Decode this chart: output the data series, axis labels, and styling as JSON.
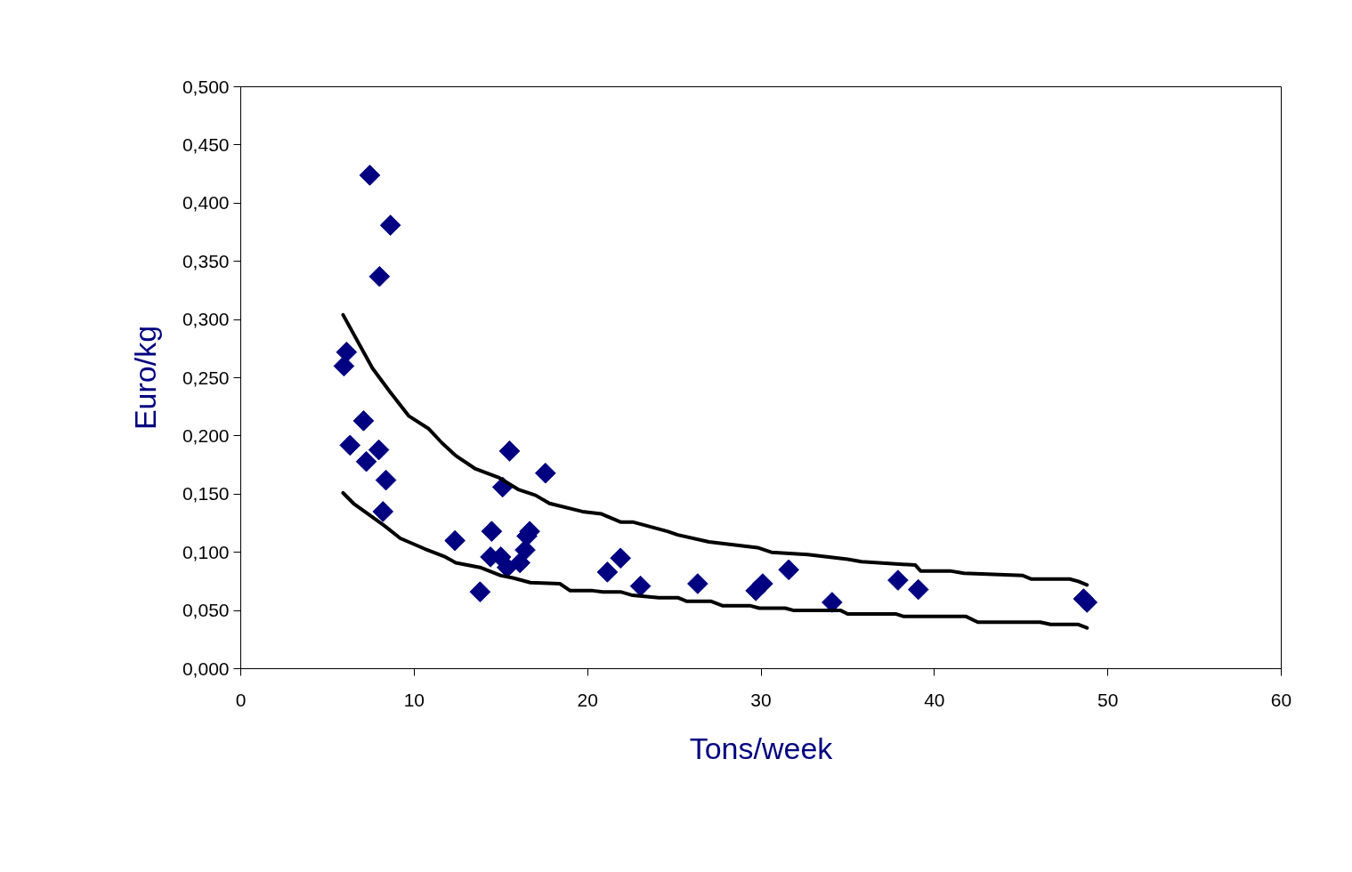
{
  "chart_data": {
    "type": "scatter",
    "xlabel": "Tons/week",
    "ylabel": "Euro/kg",
    "xlim": [
      0,
      60
    ],
    "ylim": [
      0,
      0.5
    ],
    "xticks": [
      0,
      10,
      20,
      30,
      40,
      50,
      60
    ],
    "yticks": [
      {
        "value": 0,
        "label": "0,000"
      },
      {
        "value": 0.05,
        "label": "0,050"
      },
      {
        "value": 0.1,
        "label": "0,100"
      },
      {
        "value": 0.15,
        "label": "0,150"
      },
      {
        "value": 0.2,
        "label": "0,200"
      },
      {
        "value": 0.25,
        "label": "0,250"
      },
      {
        "value": 0.3,
        "label": "0,300"
      },
      {
        "value": 0.35,
        "label": "0,350"
      },
      {
        "value": 0.4,
        "label": "0,400"
      },
      {
        "value": 0.45,
        "label": "0,450"
      },
      {
        "value": 0.5,
        "label": "0,500"
      }
    ],
    "grid": false,
    "line_style": "solid",
    "series": [
      {
        "marker": "diamond",
        "color": "#000080",
        "x": [
          7.44,
          8.63,
          8.0,
          6.1,
          5.95,
          7.08,
          6.3,
          7.24,
          7.96,
          8.37,
          8.2,
          12.35,
          14.47,
          14.4,
          15.0,
          15.36,
          16.1,
          16.5,
          16.66,
          16.4,
          13.8,
          15.1,
          15.5,
          17.57,
          21.14,
          21.9,
          23.05,
          26.35,
          29.7,
          30.1,
          31.6,
          34.1,
          37.9,
          39.07,
          48.6,
          48.8
        ],
        "values": [
          0.424,
          0.381,
          0.337,
          0.272,
          0.26,
          0.213,
          0.192,
          0.178,
          0.188,
          0.162,
          0.135,
          0.11,
          0.118,
          0.096,
          0.096,
          0.087,
          0.091,
          0.114,
          0.118,
          0.102,
          0.066,
          0.156,
          0.187,
          0.168,
          0.083,
          0.095,
          0.071,
          0.073,
          0.067,
          0.073,
          0.085,
          0.057,
          0.076,
          0.068,
          0.06,
          0.057
        ]
      },
      {
        "type": "line",
        "marker": "none",
        "color": "#000000",
        "x": [
          5.9,
          7.6,
          8.6,
          9.7,
          10.85,
          11.6,
          12.4,
          13.5,
          14.9,
          16.0,
          17.0,
          17.8,
          19.7,
          20.8,
          21.9,
          22.6,
          24.6,
          25.2,
          27.0,
          29.8,
          30.6,
          32.7,
          35.0,
          35.8,
          38.9,
          39.2,
          40.9,
          41.7,
          45.1,
          45.6,
          47.8,
          48.3,
          48.8
        ],
        "values": [
          0.304,
          0.258,
          0.238,
          0.217,
          0.206,
          0.194,
          0.183,
          0.172,
          0.164,
          0.154,
          0.149,
          0.142,
          0.135,
          0.133,
          0.126,
          0.126,
          0.118,
          0.115,
          0.109,
          0.104,
          0.1,
          0.098,
          0.094,
          0.092,
          0.089,
          0.084,
          0.084,
          0.082,
          0.08,
          0.077,
          0.077,
          0.075,
          0.072
        ]
      },
      {
        "type": "line",
        "marker": "none",
        "color": "#000000",
        "x": [
          5.9,
          6.5,
          8.27,
          9.2,
          10.6,
          11.8,
          12.4,
          13.8,
          15.0,
          15.7,
          16.7,
          18.4,
          19.0,
          20.3,
          20.9,
          21.9,
          22.6,
          24.1,
          25.2,
          25.7,
          27.1,
          27.8,
          29.4,
          29.9,
          31.4,
          31.9,
          34.6,
          35.0,
          37.8,
          38.2,
          41.8,
          42.5,
          46.1,
          46.7,
          48.3,
          48.8
        ],
        "values": [
          0.151,
          0.142,
          0.123,
          0.112,
          0.103,
          0.096,
          0.091,
          0.087,
          0.08,
          0.078,
          0.074,
          0.073,
          0.067,
          0.067,
          0.066,
          0.066,
          0.063,
          0.061,
          0.061,
          0.058,
          0.058,
          0.054,
          0.054,
          0.052,
          0.052,
          0.05,
          0.05,
          0.047,
          0.047,
          0.045,
          0.045,
          0.04,
          0.04,
          0.038,
          0.038,
          0.035
        ]
      }
    ]
  }
}
